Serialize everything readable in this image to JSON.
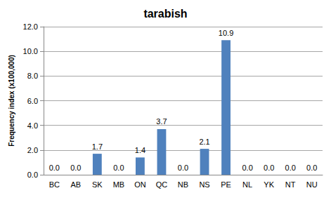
{
  "chart_data": {
    "type": "bar",
    "title": "tarabish",
    "y_label": "Frequency index (x100,000)",
    "categories": [
      "BC",
      "AB",
      "SK",
      "MB",
      "ON",
      "QC",
      "NB",
      "NS",
      "PE",
      "NL",
      "YK",
      "NT",
      "NU"
    ],
    "values": [
      0,
      0,
      1.7,
      0,
      1.4,
      3.7,
      0,
      2.1,
      10.9,
      0,
      0,
      0,
      0
    ],
    "value_labels": [
      "0.0",
      "0.0",
      "1.7",
      "0.0",
      "1.4",
      "3.7",
      "0.0",
      "2.1",
      "10.9",
      "0.0",
      "0.0",
      "0.0",
      "0.0"
    ],
    "color": "#4f81bd",
    "ylim": [
      0,
      12
    ],
    "yticks": [
      {
        "value": 0,
        "label": "0.0"
      },
      {
        "value": 2,
        "label": "2.0"
      },
      {
        "value": 4,
        "label": "4.0"
      },
      {
        "value": 6,
        "label": "6.0"
      },
      {
        "value": 8,
        "label": "8.0"
      },
      {
        "value": 10,
        "label": "10.0"
      },
      {
        "value": 12,
        "label": "12.0"
      }
    ],
    "grid": true,
    "data_labels": true
  }
}
